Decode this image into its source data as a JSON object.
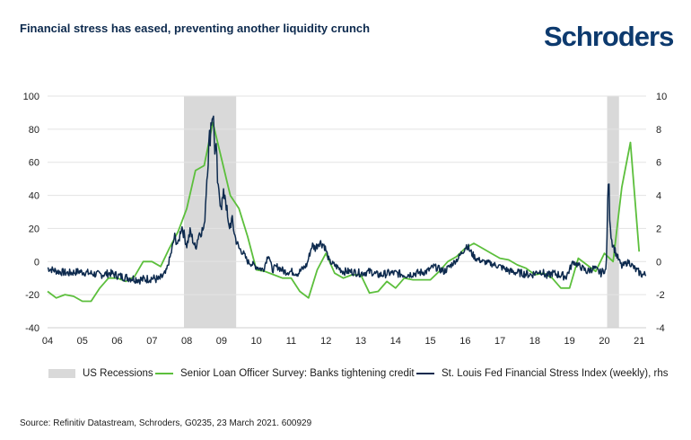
{
  "header": {
    "title": "Financial stress has eased, preventing another liquidity crunch",
    "logo": "Schroders"
  },
  "footer": {
    "source": "Source: Refinitiv Datastream, Schroders, G0235, 23 March 2021. 600929"
  },
  "colors": {
    "survey": "#5cbf3c",
    "stress": "#0d2a4e",
    "recession": "#d9d9d9"
  },
  "chart_data": {
    "type": "line",
    "title": "Financial stress has eased, preventing another liquidity crunch",
    "x_axis": {
      "range": [
        2004.0,
        2021.2
      ],
      "tick_labels": [
        "04",
        "05",
        "06",
        "07",
        "08",
        "09",
        "10",
        "11",
        "12",
        "13",
        "14",
        "15",
        "16",
        "17",
        "18",
        "19",
        "20",
        "21"
      ]
    },
    "y_left": {
      "range": [
        -40,
        100
      ],
      "ticks": [
        -40,
        -20,
        0,
        20,
        40,
        60,
        80,
        100
      ]
    },
    "y_right": {
      "range": [
        -4,
        10
      ],
      "ticks": [
        -4,
        -2,
        0,
        2,
        4,
        6,
        8,
        10
      ]
    },
    "legend": {
      "position": "bottom",
      "recessions": "US Recessions",
      "survey": "Senior Loan Officer Survey: Banks tightening credit",
      "stress": "St. Louis Fed Financial Stress Index (weekly), rhs"
    },
    "recessions": [
      {
        "start": 2007.92,
        "end": 2009.42
      },
      {
        "start": 2020.08,
        "end": 2020.42
      }
    ],
    "series": [
      {
        "name": "Senior Loan Officer Survey: Banks tightening credit",
        "axis": "left",
        "x": [
          2004.0,
          2004.25,
          2004.5,
          2004.75,
          2005.0,
          2005.25,
          2005.5,
          2005.75,
          2006.0,
          2006.25,
          2006.5,
          2006.75,
          2007.0,
          2007.25,
          2007.5,
          2007.75,
          2008.0,
          2008.25,
          2008.5,
          2008.75,
          2009.0,
          2009.25,
          2009.5,
          2009.75,
          2010.0,
          2010.25,
          2010.5,
          2010.75,
          2011.0,
          2011.25,
          2011.5,
          2011.75,
          2012.0,
          2012.25,
          2012.5,
          2012.75,
          2013.0,
          2013.25,
          2013.5,
          2013.75,
          2014.0,
          2014.25,
          2014.5,
          2014.75,
          2015.0,
          2015.25,
          2015.5,
          2015.75,
          2016.0,
          2016.25,
          2016.5,
          2016.75,
          2017.0,
          2017.25,
          2017.5,
          2017.75,
          2018.0,
          2018.25,
          2018.5,
          2018.75,
          2019.0,
          2019.25,
          2019.5,
          2019.75,
          2020.0,
          2020.25,
          2020.5,
          2020.75,
          2021.0
        ],
        "values": [
          -18,
          -22,
          -20,
          -21,
          -24,
          -24,
          -16,
          -10,
          -10,
          -12,
          -9,
          0,
          0,
          -3,
          8,
          18,
          32,
          55,
          58,
          84,
          62,
          40,
          32,
          15,
          -5,
          -6,
          -8,
          -10,
          -10,
          -18,
          -22,
          -5,
          5,
          -7,
          -10,
          -8,
          -8,
          -19,
          -18,
          -12,
          -16,
          -10,
          -11,
          -11,
          -11,
          -6,
          0,
          3,
          8,
          11,
          8,
          5,
          2,
          1,
          -2,
          -4,
          -8,
          -7,
          -10,
          -16,
          -16,
          2,
          -2,
          -6,
          5,
          0,
          45,
          72,
          6
        ]
      },
      {
        "name": "St. Louis Fed Financial Stress Index (weekly), rhs",
        "axis": "right",
        "x": [
          2004.0,
          2004.3,
          2004.6,
          2004.9,
          2005.2,
          2005.5,
          2005.8,
          2006.1,
          2006.4,
          2006.7,
          2007.0,
          2007.2,
          2007.4,
          2007.55,
          2007.65,
          2007.75,
          2007.85,
          2008.0,
          2008.1,
          2008.25,
          2008.35,
          2008.5,
          2008.6,
          2008.7,
          2008.75,
          2008.8,
          2008.85,
          2008.9,
          2009.0,
          2009.1,
          2009.2,
          2009.3,
          2009.4,
          2009.5,
          2009.6,
          2009.75,
          2010.0,
          2010.2,
          2010.35,
          2010.45,
          2010.6,
          2010.8,
          2011.0,
          2011.2,
          2011.45,
          2011.6,
          2011.7,
          2011.8,
          2011.95,
          2012.1,
          2012.3,
          2012.5,
          2012.7,
          2013.0,
          2013.3,
          2013.45,
          2013.6,
          2013.8,
          2014.0,
          2014.3,
          2014.6,
          2014.9,
          2015.1,
          2015.4,
          2015.6,
          2015.8,
          2015.95,
          2016.05,
          2016.15,
          2016.3,
          2016.5,
          2016.7,
          2017.0,
          2017.3,
          2017.6,
          2017.9,
          2018.1,
          2018.2,
          2018.35,
          2018.5,
          2018.7,
          2018.9,
          2019.0,
          2019.1,
          2019.3,
          2019.5,
          2019.7,
          2019.9,
          2020.0,
          2020.05,
          2020.12,
          2020.15,
          2020.2,
          2020.25,
          2020.35,
          2020.5,
          2020.7,
          2020.9,
          2021.1,
          2021.2
        ],
        "values": [
          -0.4,
          -0.6,
          -0.7,
          -0.6,
          -0.7,
          -0.8,
          -0.7,
          -0.9,
          -1.0,
          -1.1,
          -1.0,
          -1.1,
          -0.7,
          0.5,
          1.5,
          1.0,
          2.2,
          1.0,
          1.8,
          0.8,
          1.7,
          2.0,
          6.0,
          8.5,
          9.2,
          7.0,
          6.5,
          4.2,
          3.5,
          4.2,
          2.0,
          2.5,
          1.4,
          0.8,
          0.6,
          0.0,
          -0.3,
          -0.5,
          0.5,
          -0.5,
          -0.3,
          -0.6,
          -0.6,
          -0.7,
          -0.2,
          1.0,
          0.8,
          1.2,
          1.0,
          0.0,
          -0.3,
          -0.6,
          -0.6,
          -0.7,
          -0.6,
          -0.8,
          -0.8,
          -0.7,
          -0.7,
          -0.8,
          -0.7,
          -0.6,
          -0.3,
          -0.6,
          -0.2,
          0.2,
          0.7,
          1.0,
          0.6,
          0.2,
          0.0,
          -0.1,
          -0.3,
          -0.6,
          -0.7,
          -0.8,
          -0.6,
          -0.6,
          -0.9,
          -0.7,
          -0.8,
          -0.9,
          -0.5,
          0.0,
          -0.3,
          -0.6,
          -0.4,
          -0.7,
          -0.5,
          -0.6,
          5.4,
          3.0,
          1.4,
          1.0,
          0.4,
          -0.3,
          0.0,
          -0.5,
          -0.8,
          -0.8
        ]
      }
    ]
  }
}
